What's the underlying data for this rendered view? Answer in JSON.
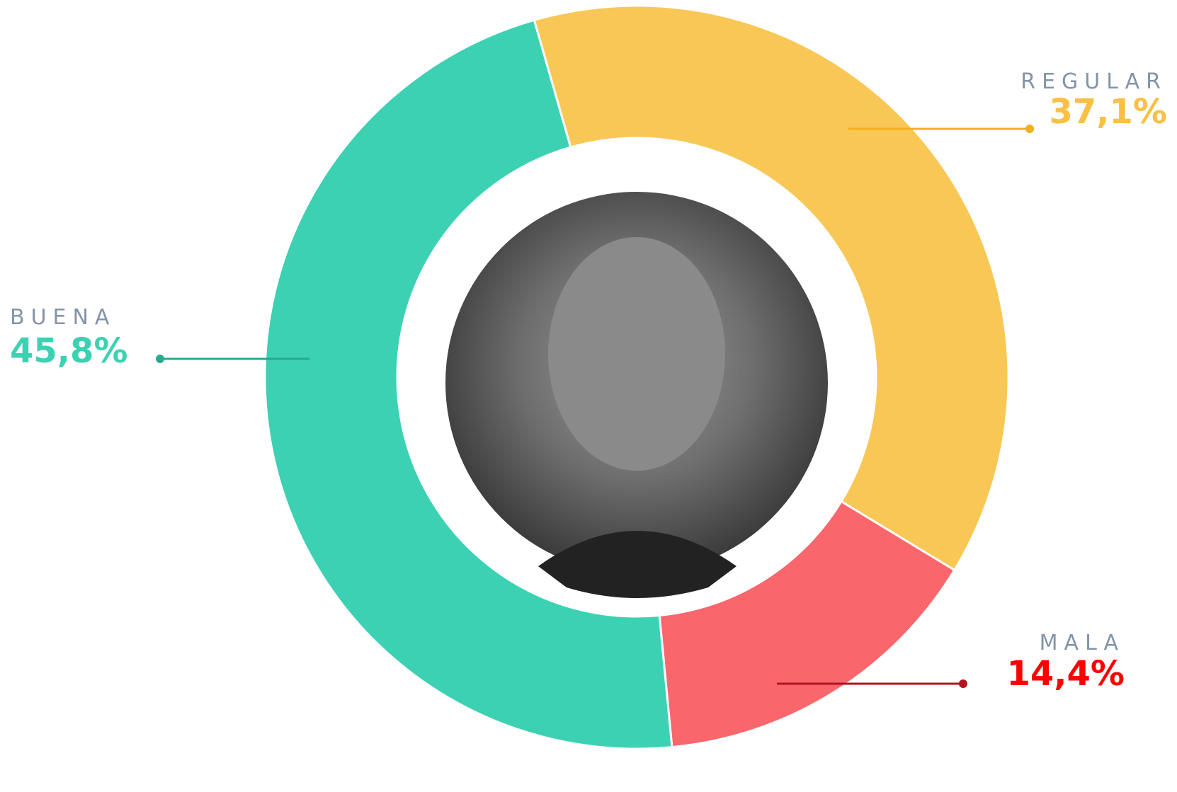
{
  "chart_data": {
    "type": "donut",
    "categories": [
      "REGULAR",
      "MALA",
      "BUENA"
    ],
    "values": [
      37.1,
      14.4,
      45.8
    ],
    "value_labels": [
      "37,1%",
      "14,4%",
      "45,8%"
    ],
    "colors": [
      "#f9c755",
      "#f9666b",
      "#3dd1b3"
    ],
    "label_colors": [
      "#f9c044",
      "#ff0000",
      "#3dd1b3"
    ]
  }
}
